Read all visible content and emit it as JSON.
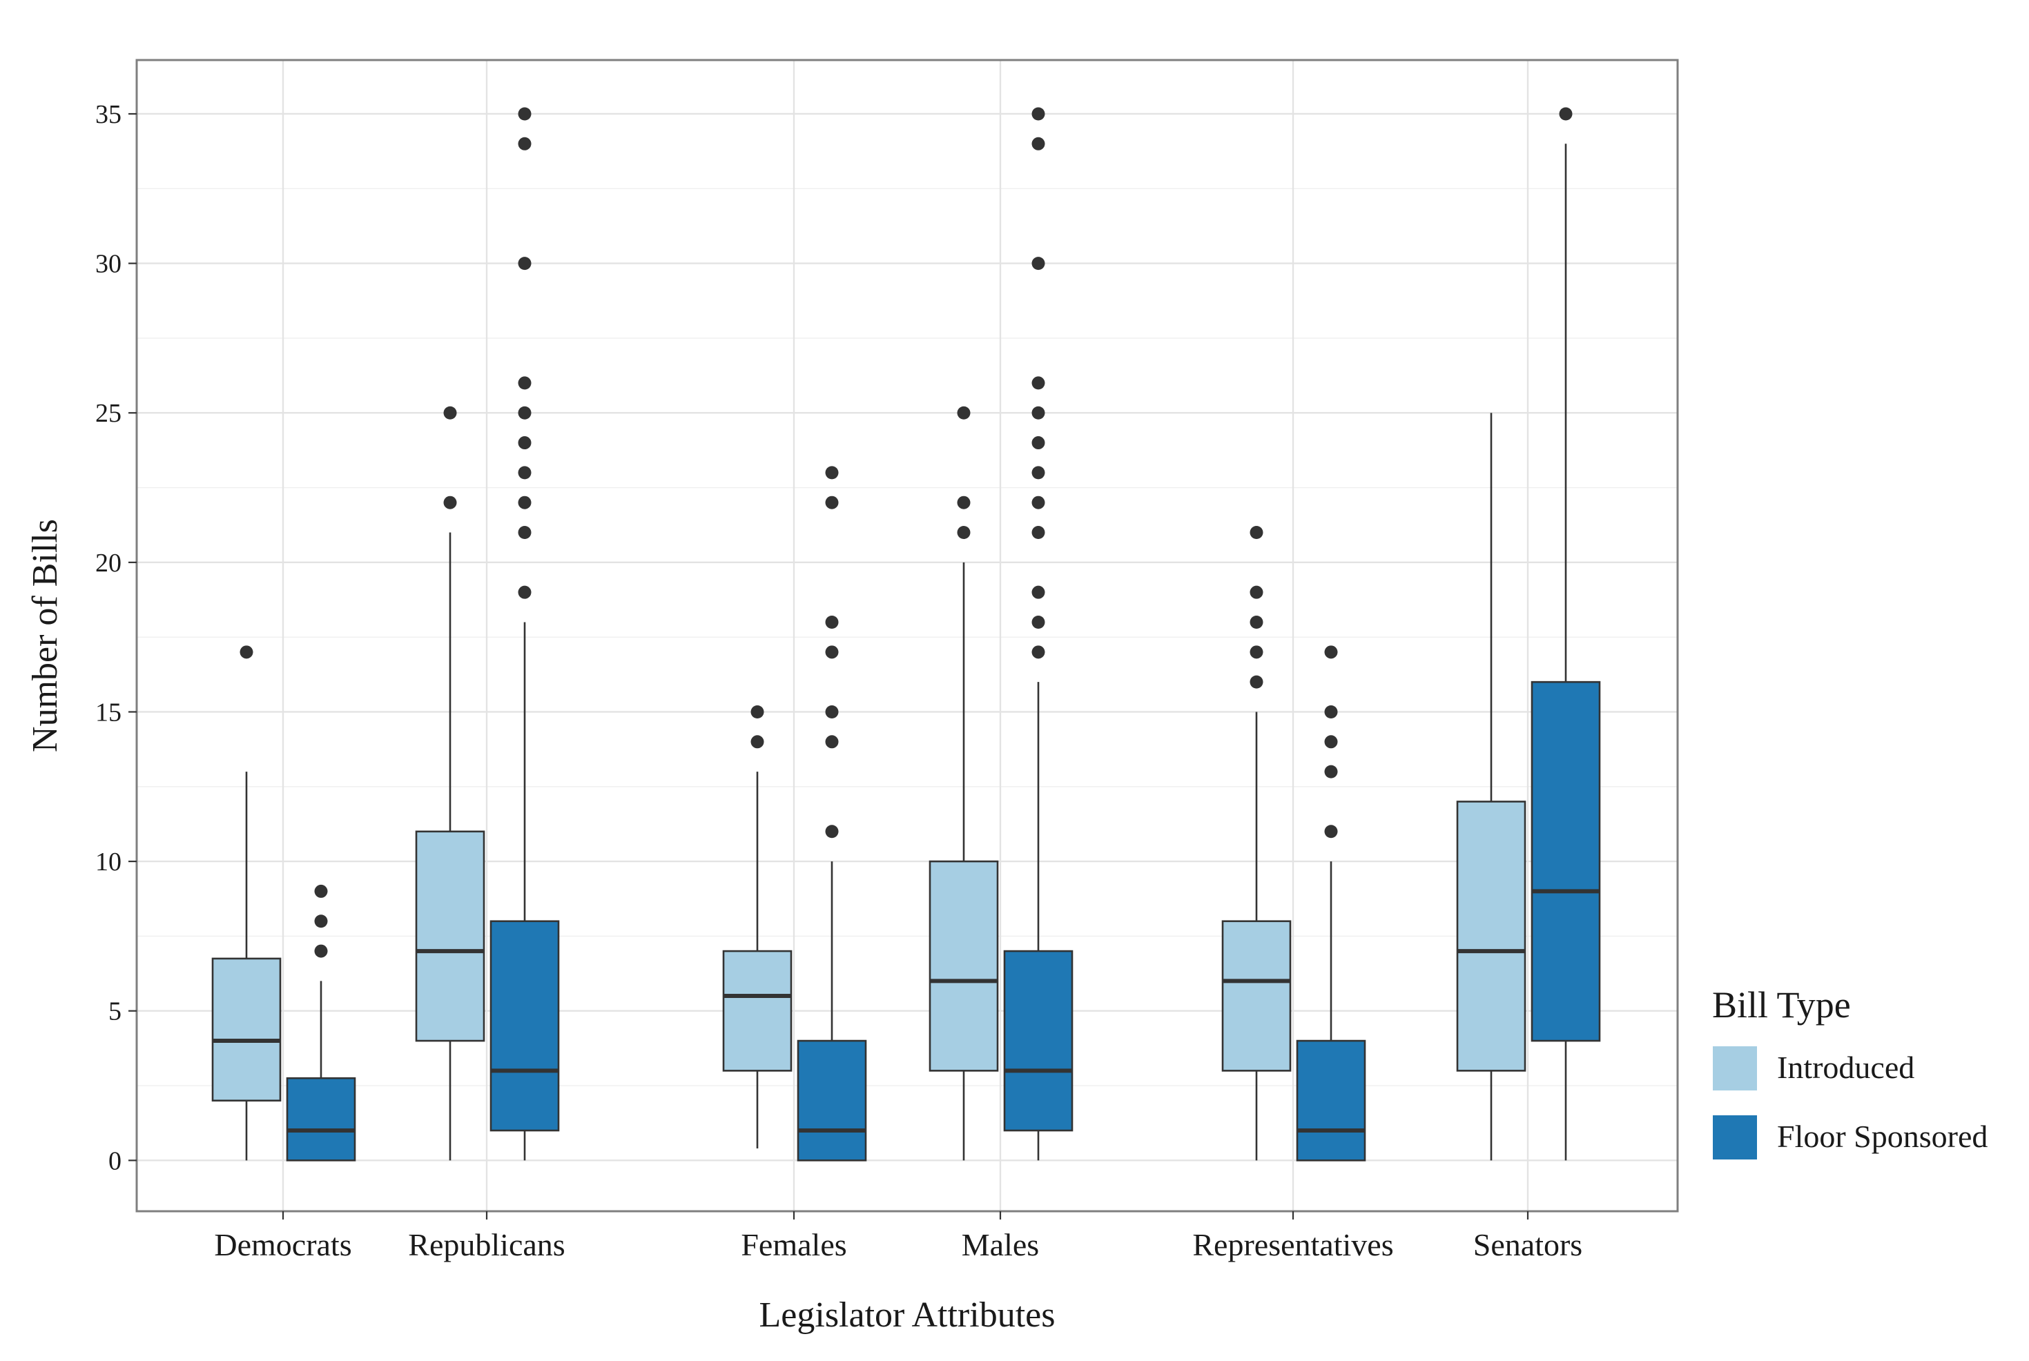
{
  "chart_data": {
    "type": "box",
    "xlabel": "Legislator Attributes",
    "ylabel": "Number of Bills",
    "ylim": [
      -1.7,
      36.8
    ],
    "yticks": [
      0,
      5,
      10,
      15,
      20,
      25,
      30,
      35
    ],
    "grid": true,
    "legend": {
      "title": "Bill Type",
      "position": "right",
      "entries": [
        {
          "name": "Introduced",
          "color": "#a6cee3"
        },
        {
          "name": "Floor Sponsored",
          "color": "#1f78b4"
        }
      ]
    },
    "categories": [
      "Democrats",
      "Republicans",
      "Females",
      "Males",
      "Representatives",
      "Senators"
    ],
    "boxes": [
      {
        "category": "Democrats",
        "series": "Introduced",
        "min": 0,
        "q1": 2,
        "median": 4,
        "q3": 6.75,
        "max": 13,
        "outliers": [
          17
        ]
      },
      {
        "category": "Democrats",
        "series": "Floor Sponsored",
        "min": 0,
        "q1": 0,
        "median": 1,
        "q3": 2.75,
        "max": 6,
        "outliers": [
          7,
          8,
          9
        ]
      },
      {
        "category": "Republicans",
        "series": "Introduced",
        "min": 0,
        "q1": 4,
        "median": 7,
        "q3": 11,
        "max": 21,
        "outliers": [
          22,
          25
        ]
      },
      {
        "category": "Republicans",
        "series": "Floor Sponsored",
        "min": 0,
        "q1": 1,
        "median": 3,
        "q3": 8,
        "max": 18,
        "outliers": [
          19,
          21,
          22,
          23,
          24,
          25,
          26,
          30,
          34,
          35
        ]
      },
      {
        "category": "Females",
        "series": "Introduced",
        "min": 0.4,
        "q1": 3,
        "median": 5.5,
        "q3": 7,
        "max": 13,
        "outliers": [
          14,
          15
        ]
      },
      {
        "category": "Females",
        "series": "Floor Sponsored",
        "min": 0,
        "q1": 0,
        "median": 1,
        "q3": 4,
        "max": 10,
        "outliers": [
          11,
          14,
          15,
          17,
          18,
          22,
          23
        ]
      },
      {
        "category": "Males",
        "series": "Introduced",
        "min": 0,
        "q1": 3,
        "median": 6,
        "q3": 10,
        "max": 20,
        "outliers": [
          21,
          22,
          25
        ]
      },
      {
        "category": "Males",
        "series": "Floor Sponsored",
        "min": 0,
        "q1": 1,
        "median": 3,
        "q3": 7,
        "max": 16,
        "outliers": [
          17,
          18,
          19,
          21,
          22,
          23,
          24,
          25,
          26,
          30,
          34,
          35
        ]
      },
      {
        "category": "Representatives",
        "series": "Introduced",
        "min": 0,
        "q1": 3,
        "median": 6,
        "q3": 8,
        "max": 15,
        "outliers": [
          16,
          17,
          18,
          19,
          21
        ]
      },
      {
        "category": "Representatives",
        "series": "Floor Sponsored",
        "min": 0,
        "q1": 0,
        "median": 1,
        "q3": 4,
        "max": 10,
        "outliers": [
          11,
          13,
          14,
          15,
          17
        ]
      },
      {
        "category": "Senators",
        "series": "Introduced",
        "min": 0,
        "q1": 3,
        "median": 7,
        "q3": 12,
        "max": 25,
        "outliers": []
      },
      {
        "category": "Senators",
        "series": "Floor Sponsored",
        "min": 0,
        "q1": 4,
        "median": 9,
        "q3": 16,
        "max": 34,
        "outliers": [
          35
        ]
      }
    ]
  }
}
